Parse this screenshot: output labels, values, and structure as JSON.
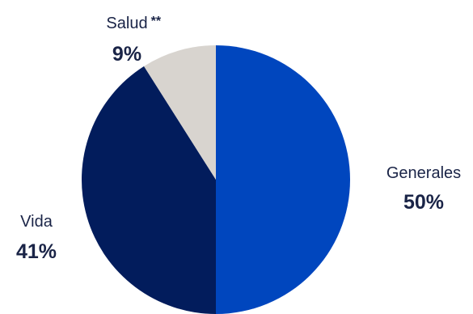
{
  "chart_data": {
    "type": "pie",
    "title": "",
    "label_color": "#1a2447",
    "slices": [
      {
        "label": "Generales",
        "value": 50,
        "value_label": "50%",
        "color": "#0046be",
        "note": ""
      },
      {
        "label": "Vida",
        "value": 41,
        "value_label": "41%",
        "color": "#021c5c",
        "note": ""
      },
      {
        "label": "Salud",
        "value": 9,
        "value_label": "9%",
        "color": "#d8d4cf",
        "note": "**"
      }
    ],
    "start": "12 o'clock",
    "direction": "clockwise",
    "legend": "none"
  }
}
